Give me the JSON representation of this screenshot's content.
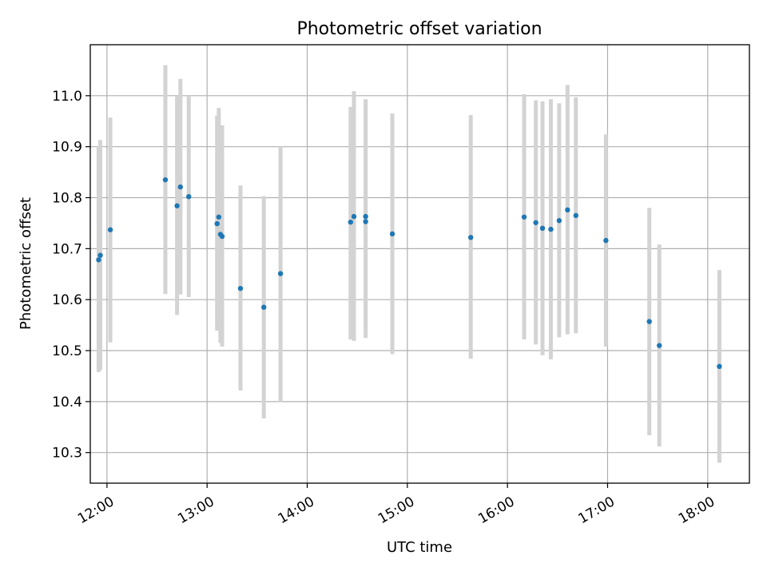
{
  "chart_data": {
    "type": "scatter",
    "title": "Photometric offset variation",
    "xlabel": "UTC time",
    "ylabel": "Photometric offset",
    "xlim": [
      "11:50",
      "18:25"
    ],
    "ylim": [
      10.24,
      11.1
    ],
    "xticks": [
      "12:00",
      "13:00",
      "14:00",
      "15:00",
      "16:00",
      "17:00",
      "18:00"
    ],
    "yticks": [
      "10.3",
      "10.4",
      "10.5",
      "10.6",
      "10.7",
      "10.8",
      "10.9",
      "11.0"
    ],
    "grid": true,
    "colors": {
      "point": "#1f77b4",
      "errorbar": "#d3d3d3"
    },
    "points": [
      {
        "time": "11:55",
        "y": 10.678,
        "ylow": 10.458,
        "yhigh": 10.9
      },
      {
        "time": "11:56",
        "y": 10.687,
        "ylow": 10.462,
        "yhigh": 10.913
      },
      {
        "time": "12:02",
        "y": 10.737,
        "ylow": 10.516,
        "yhigh": 10.957
      },
      {
        "time": "12:35",
        "y": 10.835,
        "ylow": 10.611,
        "yhigh": 11.06
      },
      {
        "time": "12:42",
        "y": 10.784,
        "ylow": 10.57,
        "yhigh": 11.0
      },
      {
        "time": "12:44",
        "y": 10.821,
        "ylow": 10.61,
        "yhigh": 11.033
      },
      {
        "time": "12:49",
        "y": 10.802,
        "ylow": 10.605,
        "yhigh": 11.0
      },
      {
        "time": "13:06",
        "y": 10.749,
        "ylow": 10.539,
        "yhigh": 10.961
      },
      {
        "time": "13:07",
        "y": 10.762,
        "ylow": 10.55,
        "yhigh": 10.976
      },
      {
        "time": "13:08",
        "y": 10.728,
        "ylow": 10.515,
        "yhigh": 10.94
      },
      {
        "time": "13:09",
        "y": 10.724,
        "ylow": 10.508,
        "yhigh": 10.942
      },
      {
        "time": "13:20",
        "y": 10.622,
        "ylow": 10.422,
        "yhigh": 10.824
      },
      {
        "time": "13:34",
        "y": 10.585,
        "ylow": 10.367,
        "yhigh": 10.803
      },
      {
        "time": "13:44",
        "y": 10.651,
        "ylow": 10.4,
        "yhigh": 10.9
      },
      {
        "time": "14:26",
        "y": 10.752,
        "ylow": 10.522,
        "yhigh": 10.978
      },
      {
        "time": "14:28",
        "y": 10.763,
        "ylow": 10.519,
        "yhigh": 11.009
      },
      {
        "time": "14:35",
        "y": 10.763,
        "ylow": 10.55,
        "yhigh": 10.993
      },
      {
        "time": "14:35",
        "y": 10.753,
        "ylow": 10.525,
        "yhigh": 10.98
      },
      {
        "time": "14:51",
        "y": 10.729,
        "ylow": 10.493,
        "yhigh": 10.965
      },
      {
        "time": "15:38",
        "y": 10.722,
        "ylow": 10.484,
        "yhigh": 10.962
      },
      {
        "time": "16:10",
        "y": 10.762,
        "ylow": 10.522,
        "yhigh": 11.003
      },
      {
        "time": "16:17",
        "y": 10.751,
        "ylow": 10.512,
        "yhigh": 10.991
      },
      {
        "time": "16:21",
        "y": 10.74,
        "ylow": 10.491,
        "yhigh": 10.989
      },
      {
        "time": "16:26",
        "y": 10.738,
        "ylow": 10.483,
        "yhigh": 10.993
      },
      {
        "time": "16:31",
        "y": 10.755,
        "ylow": 10.526,
        "yhigh": 10.985
      },
      {
        "time": "16:36",
        "y": 10.776,
        "ylow": 10.532,
        "yhigh": 11.021
      },
      {
        "time": "16:41",
        "y": 10.765,
        "ylow": 10.534,
        "yhigh": 10.997
      },
      {
        "time": "16:59",
        "y": 10.716,
        "ylow": 10.508,
        "yhigh": 10.924
      },
      {
        "time": "17:25",
        "y": 10.557,
        "ylow": 10.334,
        "yhigh": 10.78
      },
      {
        "time": "17:31",
        "y": 10.51,
        "ylow": 10.312,
        "yhigh": 10.708
      },
      {
        "time": "18:07",
        "y": 10.469,
        "ylow": 10.28,
        "yhigh": 10.658
      }
    ]
  }
}
